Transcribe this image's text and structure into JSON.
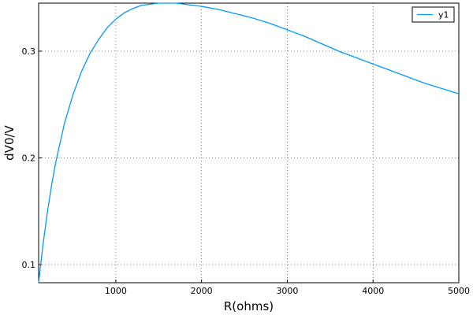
{
  "chart_data": {
    "type": "line",
    "xlabel": "R(ohms)",
    "ylabel": "dV0/V",
    "xlim": [
      100,
      5000
    ],
    "ylim": [
      0.083,
      0.345
    ],
    "x_ticks": [
      1000,
      2000,
      3000,
      4000,
      5000
    ],
    "y_ticks": [
      0.1,
      0.2,
      0.3
    ],
    "grid": true,
    "legend_position": "top-right",
    "series": [
      {
        "name": "y1",
        "color": "#009AF9",
        "x": [
          100,
          150,
          200,
          250,
          300,
          400,
          500,
          600,
          700,
          800,
          900,
          1000,
          1100,
          1200,
          1300,
          1400,
          1500,
          1600,
          1700,
          1800,
          1900,
          2000,
          2200,
          2400,
          2600,
          2800,
          3000,
          3200,
          3400,
          3600,
          3800,
          4000,
          4200,
          4400,
          4600,
          4800,
          5000
        ],
        "y": [
          0.083,
          0.118,
          0.148,
          0.174,
          0.196,
          0.232,
          0.259,
          0.281,
          0.298,
          0.311,
          0.322,
          0.33,
          0.336,
          0.34,
          0.343,
          0.344,
          0.345,
          0.345,
          0.345,
          0.344,
          0.343,
          0.342,
          0.339,
          0.335,
          0.331,
          0.326,
          0.32,
          0.314,
          0.307,
          0.3,
          0.294,
          0.288,
          0.282,
          0.276,
          0.27,
          0.265,
          0.26
        ]
      }
    ]
  }
}
